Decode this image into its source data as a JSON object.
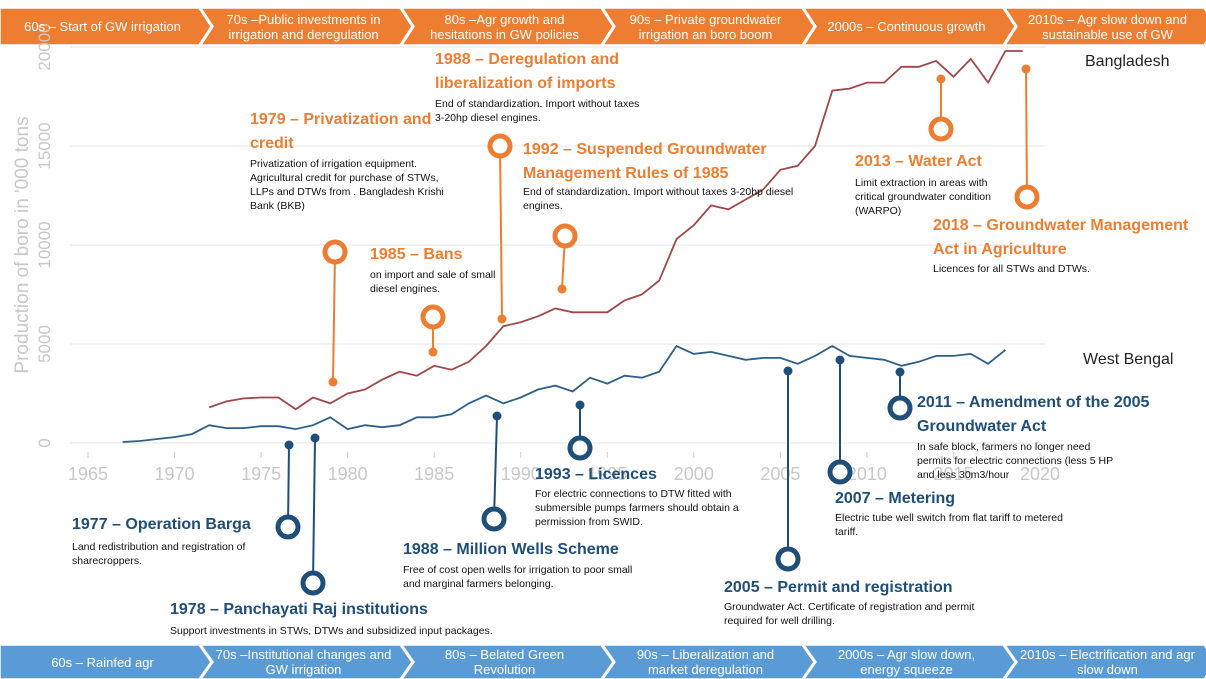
{
  "chart_data": {
    "type": "line",
    "y_label": "Production of boro in '000 tons",
    "x": [
      1967,
      1968,
      1969,
      1970,
      1971,
      1972,
      1973,
      1974,
      1975,
      1976,
      1977,
      1978,
      1979,
      1980,
      1981,
      1982,
      1983,
      1984,
      1985,
      1986,
      1987,
      1988,
      1989,
      1990,
      1991,
      1992,
      1993,
      1994,
      1995,
      1996,
      1997,
      1998,
      1999,
      2000,
      2001,
      2002,
      2003,
      2004,
      2005,
      2006,
      2007,
      2008,
      2009,
      2010,
      2011,
      2012,
      2013,
      2014,
      2015,
      2016,
      2017,
      2018,
      2019
    ],
    "series": [
      {
        "name": "Bangladesh",
        "color": "#a0474a",
        "values": [
          null,
          null,
          null,
          null,
          null,
          1800,
          2100,
          2250,
          2300,
          2300,
          1700,
          2300,
          2000,
          2500,
          2700,
          3200,
          3600,
          3400,
          3900,
          3700,
          4100,
          4900,
          5900,
          6100,
          6400,
          6800,
          6600,
          6600,
          6600,
          7200,
          7500,
          8200,
          10300,
          11000,
          12000,
          11800,
          12300,
          12800,
          13800,
          14000,
          15000,
          17800,
          17900,
          18200,
          18200,
          19000,
          19000,
          19300,
          18500,
          19400,
          18200,
          19800,
          19800
        ]
      },
      {
        "name": "West Bengal",
        "color": "#2e5f8a",
        "values": [
          50,
          100,
          200,
          300,
          450,
          900,
          750,
          750,
          850,
          850,
          700,
          900,
          1300,
          700,
          900,
          800,
          900,
          1300,
          1300,
          1450,
          2000,
          2400,
          2000,
          2300,
          2700,
          2900,
          2600,
          3300,
          3000,
          3400,
          3300,
          3600,
          4900,
          4500,
          4600,
          4400,
          4200,
          4300,
          4300,
          4000,
          4400,
          4900,
          4400,
          4300,
          4200,
          3900,
          4100,
          4400,
          4400,
          4500,
          4000,
          4700,
          null
        ]
      }
    ],
    "xlim": [
      1965,
      2020
    ],
    "xticks": [
      1965,
      1970,
      1975,
      1980,
      1985,
      1990,
      1995,
      2000,
      2005,
      2010,
      2015,
      2020
    ],
    "ylim": [
      0,
      20000
    ],
    "yticks": [
      0,
      5000,
      10000,
      15000,
      20000
    ],
    "grid": true,
    "annotations": [
      {
        "title": "1979 – Privatization and credit",
        "text": "Privatization of irrigation equipment. Agricultural credit for purchase of STWs, LLPs and DTWs from . Bangladesh Krishi Bank (BKB)",
        "color": "#ed7d31"
      },
      {
        "title": "1985 – Bans",
        "text": "on import and sale of small diesel engines.",
        "color": "#ed7d31"
      },
      {
        "title": "1988 – Deregulation and liberalization of imports",
        "text": "End of standardization. Import without taxes 3-20hp diesel engines.",
        "color": "#ed7d31"
      },
      {
        "title": "1992 – Suspended Groundwater Management Rules of 1985",
        "text": "End of standardization. Import without taxes 3-20hp diesel engines.",
        "color": "#ed7d31"
      },
      {
        "title": "2013 – Water Act",
        "text": "Limit extraction in areas with critical groundwater condition (WARPO)",
        "color": "#ed7d31"
      },
      {
        "title": "2018 – Groundwater Management Act  in Agriculture",
        "text": "Licences for all STWs and DTWs.",
        "color": "#ed7d31"
      },
      {
        "title": "1977 – Operation Barga",
        "text": "Land redistribution and registration of sharecroppers.",
        "color": "#1f4e79"
      },
      {
        "title": "1978 – Panchayati Raj institutions",
        "text": "Support investments in STWs, DTWs and subsidized input packages.",
        "color": "#1f4e79"
      },
      {
        "title": "1988 – Million Wells Scheme",
        "text": "Free of cost open wells for irrigation to poor small and marginal farmers belonging.",
        "color": "#1f4e79"
      },
      {
        "title": "1993 – Licences",
        "text": "For electric connections to DTW fitted with submersible pumps farmers should obtain a permission from SWID.",
        "color": "#1f4e79"
      },
      {
        "title": "2005 – Permit and registration",
        "text": "Groundwater Act. Certificate of registration and permit required for well drilling.",
        "color": "#1f4e79"
      },
      {
        "title": "2007 – Metering",
        "text": "Electric tube well switch from flat tariff to metered tariff.",
        "color": "#1f4e79"
      },
      {
        "title": "2011 – Amendment of the 2005 Groundwater Act",
        "text": "In safe block, farmers no longer need permits for electric connections (less 5 HP and less 30m3/hour",
        "color": "#1f4e79"
      }
    ]
  },
  "top_band": {
    "color": "#ed7d31",
    "phases": [
      "60s – Start of GW irrigation",
      "70s –Public investments in irrigation and deregulation",
      "80s –Agr growth and hesitations in GW policies",
      "90s – Private groundwater irrigation an boro boom",
      "2000s – Continuous growth",
      "2010s – Agr slow down and sustainable use of GW"
    ]
  },
  "bottom_band": {
    "color": "#5b9bd5",
    "phases": [
      "60s – Rainfed agr",
      "70s –Institutional changes and GW irrigation",
      "80s – Belated Green Revolution",
      "90s – Liberalization and market deregulation",
      "2000s – Agr slow down, energy squeeze",
      "2010s – Electrification and agr slow down"
    ]
  }
}
